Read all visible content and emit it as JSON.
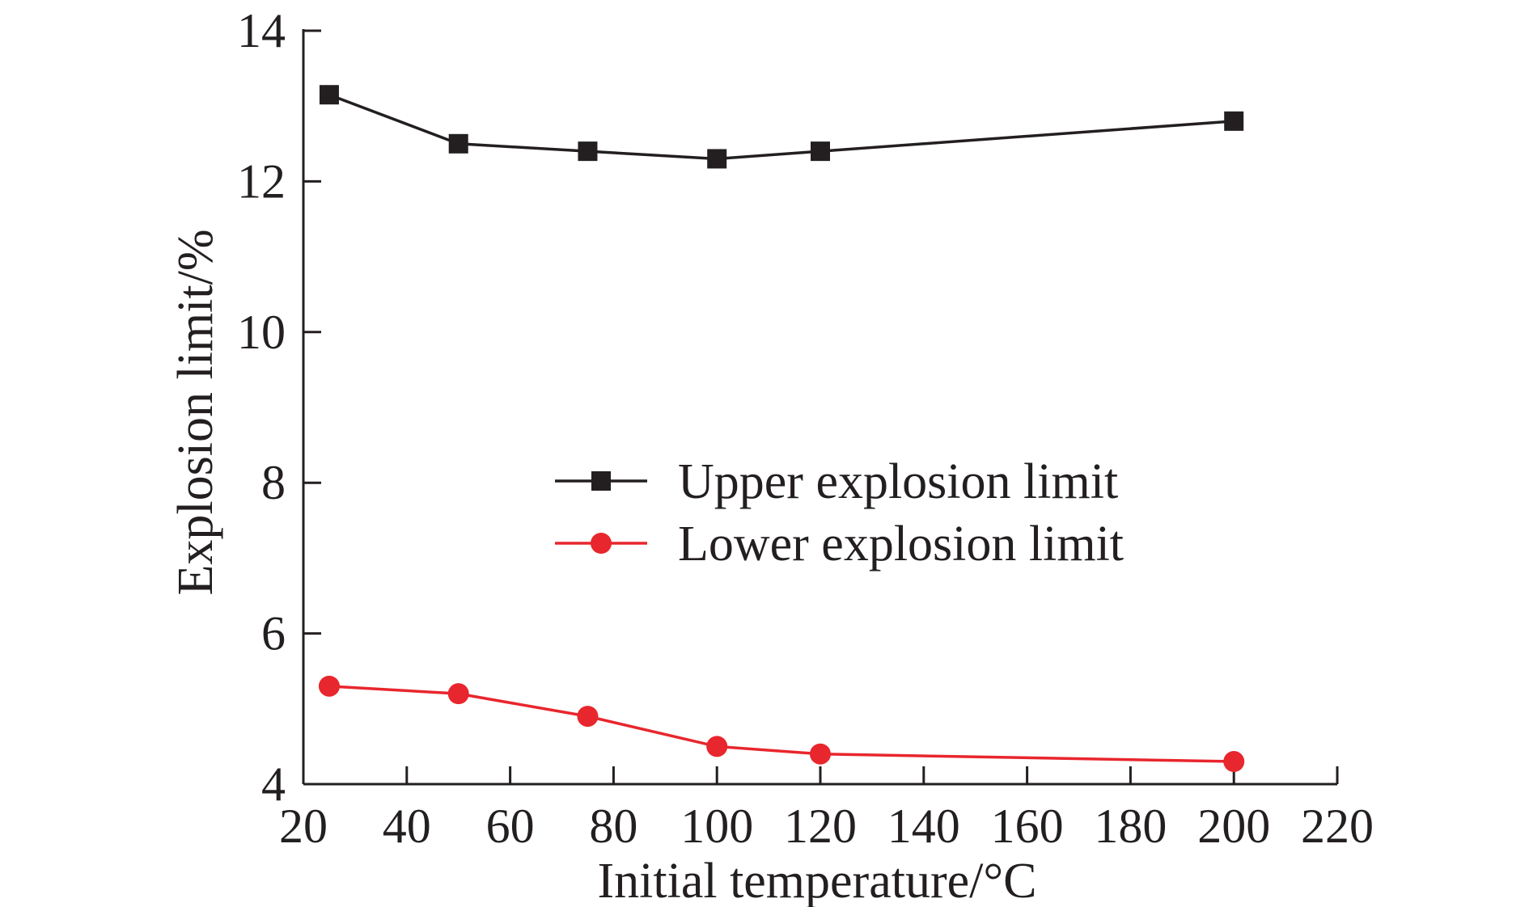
{
  "chart_data": {
    "type": "line",
    "xlabel": "Initial temperature/°C",
    "ylabel": "Explosion limit/%",
    "xlim": [
      20,
      220
    ],
    "ylim": [
      4,
      14
    ],
    "xticks": [
      20,
      40,
      60,
      80,
      100,
      120,
      140,
      160,
      180,
      200,
      220
    ],
    "yticks": [
      4,
      6,
      8,
      10,
      12,
      14
    ],
    "grid": false,
    "legend_position": "center",
    "series": [
      {
        "name": "Upper explosion limit",
        "color": "#231f20",
        "marker": "square",
        "x": [
          25,
          50,
          75,
          100,
          120,
          200
        ],
        "y": [
          13.15,
          12.5,
          12.4,
          12.3,
          12.4,
          12.8
        ]
      },
      {
        "name": "Lower explosion limit",
        "color": "#e8262d",
        "marker": "circle",
        "x": [
          25,
          50,
          75,
          100,
          120,
          200
        ],
        "y": [
          5.3,
          5.2,
          4.9,
          4.5,
          4.4,
          4.3
        ]
      }
    ]
  }
}
